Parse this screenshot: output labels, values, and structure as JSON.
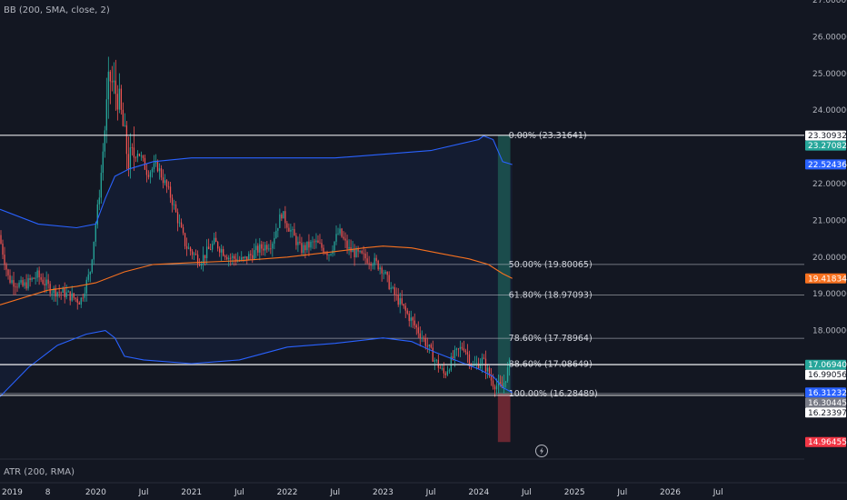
{
  "indicators": {
    "bb_label": "BB (200, SMA, close, 2)",
    "atr_label": "ATR (200, RMA)"
  },
  "colors": {
    "background": "#131722",
    "up": "#26a69a",
    "down": "#ef5350",
    "bb_band": "#2962ff",
    "bb_basis": "#f7711f",
    "fib_line": "#b2b5be",
    "long_profit": "#1e5c55",
    "long_loss": "#7a2a35"
  },
  "chart_data": {
    "type": "candlestick",
    "title": "",
    "y_axis": {
      "min": 14.5,
      "max": 27.0,
      "ticks": [
        "27.00000",
        "26.00000",
        "25.00000",
        "24.00000",
        "23.00000",
        "22.00000",
        "21.00000",
        "20.00000",
        "19.00000",
        "18.00000"
      ]
    },
    "x_axis": {
      "start": 2019.0,
      "end": 2027.4,
      "ticks": [
        {
          "t": 2019.0,
          "label": "2019"
        },
        {
          "t": 2019.5,
          "label": "8"
        },
        {
          "t": 2020.0,
          "label": "2020"
        },
        {
          "t": 2020.5,
          "label": "Jul"
        },
        {
          "t": 2021.0,
          "label": "2021"
        },
        {
          "t": 2021.5,
          "label": "Jul"
        },
        {
          "t": 2022.0,
          "label": "2022"
        },
        {
          "t": 2022.5,
          "label": "Jul"
        },
        {
          "t": 2023.0,
          "label": "2023"
        },
        {
          "t": 2023.5,
          "label": "Jul"
        },
        {
          "t": 2024.0,
          "label": "2024"
        },
        {
          "t": 2024.5,
          "label": "Jul"
        },
        {
          "t": 2025.0,
          "label": "2025"
        },
        {
          "t": 2025.5,
          "label": "Jul"
        },
        {
          "t": 2026.0,
          "label": "2026"
        },
        {
          "t": 2026.5,
          "label": "Jul"
        }
      ]
    },
    "price_path": [
      [
        2019.0,
        20.6
      ],
      [
        2019.1,
        19.4
      ],
      [
        2019.25,
        19.2
      ],
      [
        2019.4,
        19.5
      ],
      [
        2019.55,
        19.1
      ],
      [
        2019.7,
        19.0
      ],
      [
        2019.85,
        18.8
      ],
      [
        2019.95,
        19.6
      ],
      [
        2020.05,
        21.8
      ],
      [
        2020.15,
        24.9
      ],
      [
        2020.25,
        24.3
      ],
      [
        2020.35,
        22.6
      ],
      [
        2020.45,
        22.9
      ],
      [
        2020.55,
        22.3
      ],
      [
        2020.65,
        22.5
      ],
      [
        2020.8,
        21.6
      ],
      [
        2020.95,
        20.3
      ],
      [
        2021.1,
        19.9
      ],
      [
        2021.25,
        20.4
      ],
      [
        2021.4,
        20.0
      ],
      [
        2021.55,
        19.9
      ],
      [
        2021.7,
        20.2
      ],
      [
        2021.85,
        20.4
      ],
      [
        2021.95,
        21.2
      ],
      [
        2022.05,
        20.7
      ],
      [
        2022.15,
        20.2
      ],
      [
        2022.3,
        20.4
      ],
      [
        2022.45,
        20.1
      ],
      [
        2022.55,
        20.7
      ],
      [
        2022.65,
        20.2
      ],
      [
        2022.8,
        20.0
      ],
      [
        2022.9,
        19.9
      ],
      [
        2023.0,
        19.7
      ],
      [
        2023.1,
        19.1
      ],
      [
        2023.2,
        18.7
      ],
      [
        2023.3,
        18.3
      ],
      [
        2023.45,
        17.7
      ],
      [
        2023.55,
        17.2
      ],
      [
        2023.65,
        16.8
      ],
      [
        2023.75,
        17.3
      ],
      [
        2023.85,
        17.6
      ],
      [
        2023.95,
        17.0
      ],
      [
        2024.05,
        17.2
      ],
      [
        2024.15,
        16.6
      ],
      [
        2024.25,
        16.4
      ],
      [
        2024.33,
        17.07
      ]
    ],
    "candles": {
      "count": 280,
      "start": 2019.0,
      "end": 2024.33
    },
    "bollinger": {
      "upper": [
        [
          2019.0,
          21.3
        ],
        [
          2019.4,
          20.9
        ],
        [
          2019.8,
          20.8
        ],
        [
          2020.0,
          20.9
        ],
        [
          2020.1,
          21.6
        ],
        [
          2020.2,
          22.2
        ],
        [
          2020.35,
          22.4
        ],
        [
          2020.6,
          22.6
        ],
        [
          2021.0,
          22.7
        ],
        [
          2021.5,
          22.7
        ],
        [
          2022.0,
          22.7
        ],
        [
          2022.5,
          22.7
        ],
        [
          2023.0,
          22.8
        ],
        [
          2023.5,
          22.9
        ],
        [
          2024.0,
          23.2
        ],
        [
          2024.05,
          23.3
        ],
        [
          2024.15,
          23.2
        ],
        [
          2024.25,
          22.6
        ],
        [
          2024.35,
          22.52
        ]
      ],
      "basis": [
        [
          2019.0,
          18.7
        ],
        [
          2019.5,
          19.1
        ],
        [
          2019.8,
          19.2
        ],
        [
          2020.0,
          19.3
        ],
        [
          2020.3,
          19.6
        ],
        [
          2020.6,
          19.8
        ],
        [
          2021.0,
          19.85
        ],
        [
          2021.5,
          19.9
        ],
        [
          2022.0,
          20.0
        ],
        [
          2022.5,
          20.15
        ],
        [
          2022.8,
          20.25
        ],
        [
          2023.0,
          20.3
        ],
        [
          2023.3,
          20.25
        ],
        [
          2023.6,
          20.1
        ],
        [
          2023.9,
          19.95
        ],
        [
          2024.1,
          19.8
        ],
        [
          2024.25,
          19.55
        ],
        [
          2024.35,
          19.42
        ]
      ],
      "lower": [
        [
          2019.0,
          16.2
        ],
        [
          2019.3,
          17.0
        ],
        [
          2019.6,
          17.6
        ],
        [
          2019.9,
          17.9
        ],
        [
          2020.1,
          18.0
        ],
        [
          2020.2,
          17.8
        ],
        [
          2020.3,
          17.3
        ],
        [
          2020.5,
          17.2
        ],
        [
          2021.0,
          17.1
        ],
        [
          2021.5,
          17.2
        ],
        [
          2022.0,
          17.55
        ],
        [
          2022.5,
          17.65
        ],
        [
          2023.0,
          17.8
        ],
        [
          2023.3,
          17.7
        ],
        [
          2023.55,
          17.4
        ],
        [
          2023.75,
          17.2
        ],
        [
          2024.0,
          16.95
        ],
        [
          2024.15,
          16.75
        ],
        [
          2024.25,
          16.45
        ],
        [
          2024.35,
          16.31
        ]
      ]
    },
    "fibonacci": {
      "start": 2023.98,
      "levels": [
        {
          "label": "0.00% (23.31641)",
          "price": 23.31641
        },
        {
          "label": "50.00% (19.80065)",
          "price": 19.80065
        },
        {
          "label": "61.80% (18.97093)",
          "price": 18.97093
        },
        {
          "label": "78.60% (17.78964)",
          "price": 17.78964
        },
        {
          "label": "88.60% (17.08649)",
          "price": 17.08649
        },
        {
          "label": "100.00% (16.28489)",
          "price": 16.28489
        }
      ]
    },
    "position": {
      "start": 2024.2,
      "end": 2024.33,
      "target": 23.31641,
      "entry": 16.28489,
      "stop": 14.96455
    },
    "price_lines": [
      {
        "price": 23.31641,
        "color": "#ffffff"
      },
      {
        "price": 17.0694,
        "color": "#ffffff"
      },
      {
        "price": 16.23397,
        "color": "#ffffff"
      }
    ],
    "price_labels": [
      {
        "text": "23.30932",
        "price": 23.30932,
        "bg": "#ffffff",
        "fg": "#131722"
      },
      {
        "text": "23.27082",
        "price": 23.27082,
        "bg": "#26a69a",
        "fg": "#ffffff"
      },
      {
        "text": "22.52436",
        "price": 22.52436,
        "bg": "#2962ff",
        "fg": "#ffffff"
      },
      {
        "text": "19.41834",
        "price": 19.41834,
        "bg": "#f7711f",
        "fg": "#ffffff"
      },
      {
        "text": "17.06940",
        "price": 17.0694,
        "bg": "#26a69a",
        "fg": "#ffffff"
      },
      {
        "text": "16.99056",
        "price": 16.99056,
        "bg": "#ffffff",
        "fg": "#131722"
      },
      {
        "text": "16.31232",
        "price": 16.31232,
        "bg": "#2962ff",
        "fg": "#ffffff"
      },
      {
        "text": "16.30445",
        "price": 16.30445,
        "bg": "#787b86",
        "fg": "#ffffff"
      },
      {
        "text": "16.23397",
        "price": 16.23397,
        "bg": "#ffffff",
        "fg": "#131722"
      },
      {
        "text": "14.96455",
        "price": 14.96455,
        "bg": "#f23645",
        "fg": "#ffffff"
      }
    ]
  }
}
